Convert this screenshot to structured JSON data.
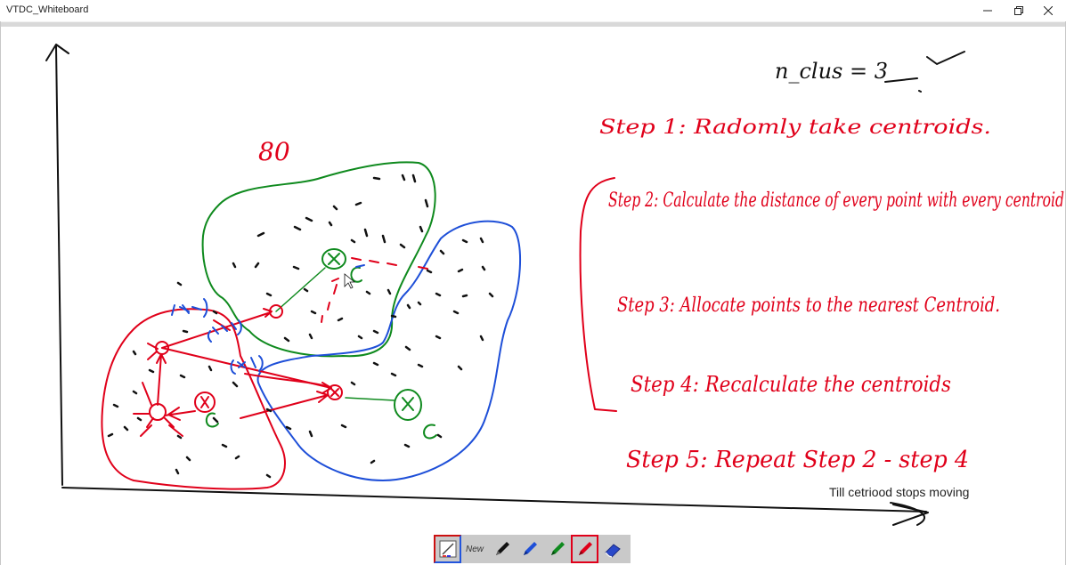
{
  "window": {
    "title": "VTDC_Whiteboard"
  },
  "controls": {
    "minimize": "minimize",
    "maximize": "maximize",
    "close": "close"
  },
  "board": {
    "typed_note": "Till cetriood stops moving",
    "handwriting": {
      "n_clusters": "n_clus = 3",
      "count": "80",
      "step1": "Step 1: Radomly take centroids.",
      "step2": "Step 2: Calculate the distance of every point with every centroid",
      "step3": "Step 3: Allocate points to the nearest Centroid.",
      "step4": "Step 4: Recalculate the centroids",
      "step5": "Step 5: Repeat Step 2 - step 4"
    }
  },
  "toolbar": {
    "new_label": "New",
    "tools": [
      {
        "name": "color-palette",
        "color": "#ffffff"
      },
      {
        "name": "pen-black",
        "color": "#111111"
      },
      {
        "name": "pen-blue",
        "color": "#1e4fd8"
      },
      {
        "name": "pen-green",
        "color": "#0f8a1e"
      },
      {
        "name": "pen-red",
        "color": "#e0001a",
        "active": true
      },
      {
        "name": "eraser",
        "color": "#2a49c9"
      }
    ]
  }
}
